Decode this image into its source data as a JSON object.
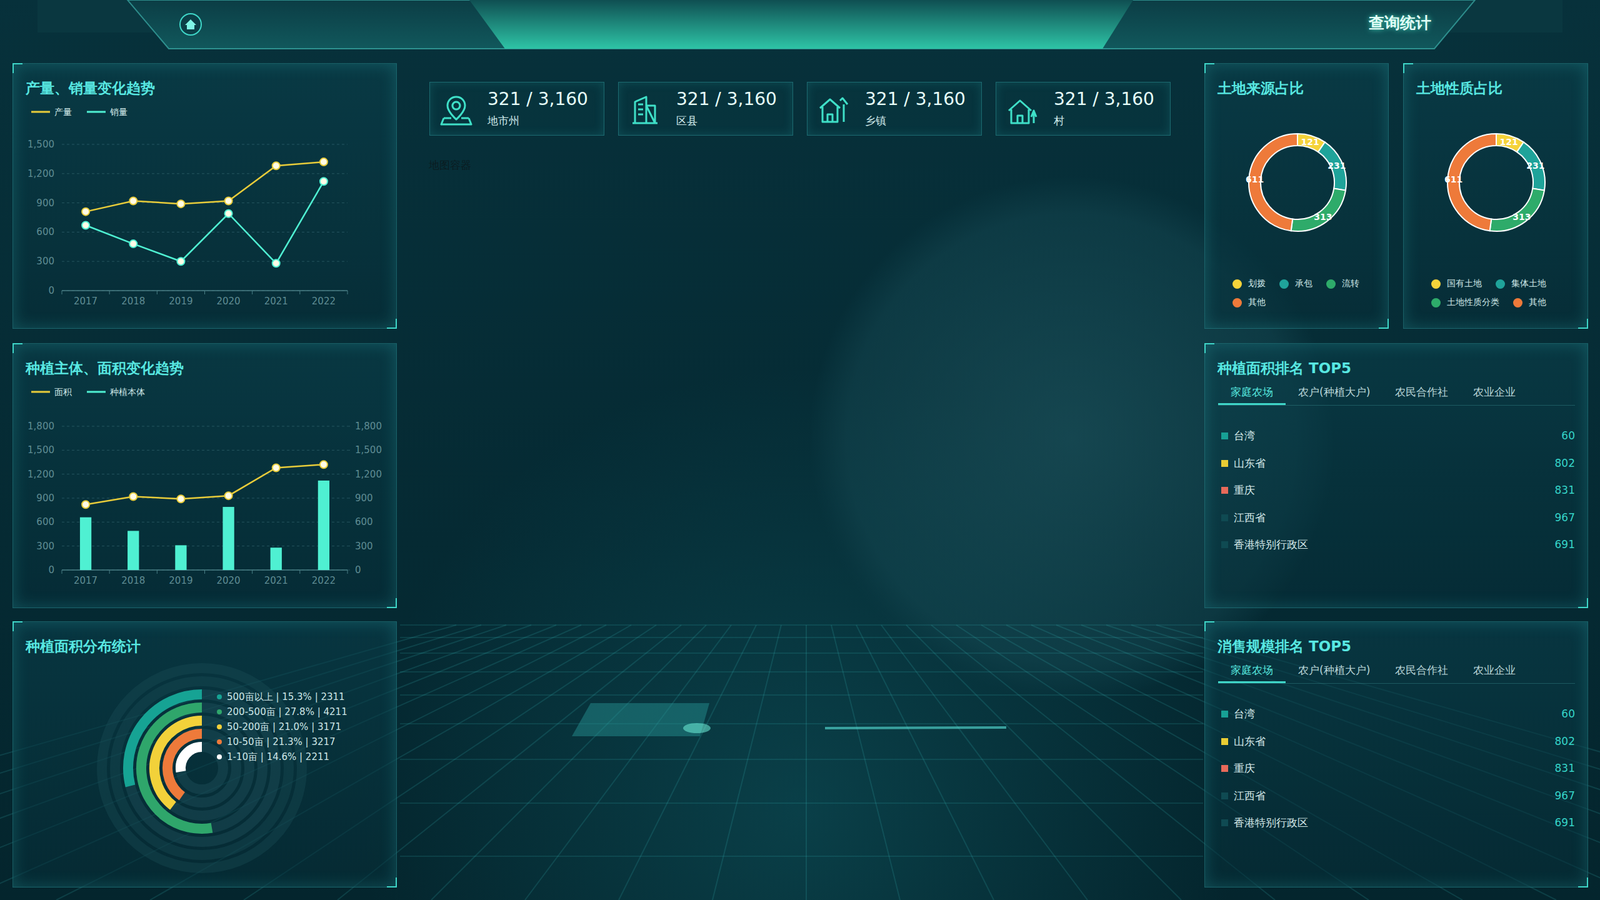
{
  "header": {
    "title": "查询统计"
  },
  "stats": [
    {
      "value": "321 / 3,160",
      "label": "地市州"
    },
    {
      "value": "321 / 3,160",
      "label": "区县"
    },
    {
      "value": "321 / 3,160",
      "label": "乡镇"
    },
    {
      "value": "321 / 3,160",
      "label": "村"
    }
  ],
  "map": {
    "placeholder": "地图容器"
  },
  "chart_data": [
    {
      "type": "line",
      "title": "产量、销量变化趋势",
      "categories": [
        "2017",
        "2018",
        "2019",
        "2020",
        "2021",
        "2022"
      ],
      "series": [
        {
          "name": "产量",
          "color": "#e8cc3a",
          "values": [
            810,
            920,
            890,
            920,
            1280,
            1320
          ]
        },
        {
          "name": "销量",
          "color": "#4ff0d2",
          "values": [
            670,
            480,
            300,
            790,
            280,
            1120
          ]
        }
      ],
      "ylim": [
        0,
        1500
      ],
      "yticks": [
        0,
        300,
        600,
        900,
        {
          "value": 1200,
          "label": "1,200"
        },
        {
          "value": 1500,
          "label": "1,500"
        }
      ],
      "grid": true,
      "legend": "top",
      "marker": "circle"
    },
    {
      "type": "bar",
      "title": "种植主体、面积变化趋势",
      "categories": [
        "2017",
        "2018",
        "2019",
        "2020",
        "2021",
        "2022"
      ],
      "series": [
        {
          "name": "面积",
          "type": "line",
          "color": "#e8cc3a",
          "marker": "circle",
          "values": [
            820,
            920,
            890,
            930,
            1280,
            1320
          ]
        },
        {
          "name": "种植本体",
          "type": "bar",
          "color": "#4ff0d2",
          "axis": "y2",
          "values": [
            660,
            490,
            310,
            790,
            280,
            1120
          ]
        }
      ],
      "ylim": [
        0,
        1800
      ],
      "yticks": [
        0,
        300,
        600,
        900,
        {
          "value": 1200,
          "label": "1,200"
        },
        {
          "value": 1500,
          "label": "1,500"
        },
        {
          "value": 1800,
          "label": "1,800"
        }
      ],
      "y2lim": [
        0,
        1800
      ],
      "y2ticks": [
        0,
        300,
        600,
        900,
        {
          "value": 1200,
          "label": "1,200"
        },
        {
          "value": 1500,
          "label": "1,500"
        },
        {
          "value": 1800,
          "label": "1,800"
        }
      ],
      "grid": true,
      "legend": "top"
    },
    {
      "type": "radial_bar",
      "title": "种植面积分布统计",
      "categories": [
        "500亩以上 | 15.3% | 2311",
        "200-500亩 | 27.8% | 4211",
        "50-200亩 | 21.0% | 3171",
        "10-50亩 | 21.3% | 3217",
        "1-10亩 | 14.6% | 2211"
      ],
      "values": [
        2311,
        4211,
        3171,
        3217,
        2211
      ],
      "colors": [
        "#16a394",
        "#2fa66b",
        "#f2d13a",
        "#ee7a3a",
        "#ffffff"
      ],
      "xlim": [
        0,
        8000
      ],
      "tick_labels": false,
      "legend": "right"
    },
    {
      "type": "pie",
      "title": "土地来源占比",
      "categories": [
        "划拨",
        "承包",
        "流转",
        "其他"
      ],
      "values": [
        121,
        231,
        313,
        611
      ],
      "colors": [
        "#f5d33a",
        "#1fa39a",
        "#2eab6a",
        "#ee7a3a"
      ],
      "data_labels": true,
      "legend": "bottom"
    },
    {
      "type": "pie",
      "title": "土地性质占比",
      "categories": [
        "国有土地",
        "集体土地",
        "土地性质分类",
        "其他"
      ],
      "values": [
        121,
        231,
        313,
        611
      ],
      "colors": [
        "#f5d33a",
        "#1fa39a",
        "#2eab6a",
        "#ee7a3a"
      ],
      "data_labels": true,
      "legend": "bottom"
    }
  ],
  "rankings": [
    {
      "title": "种植面积排名 TOP5",
      "tabs": [
        "家庭农场",
        "农户(种植大户)",
        "农民合作社",
        "农业企业"
      ],
      "active_tab": 0,
      "items": [
        {
          "name": "台湾",
          "value": 60,
          "color": "#17a095"
        },
        {
          "name": "山东省",
          "value": 802,
          "color": "#e9cd34"
        },
        {
          "name": "重庆",
          "value": 831,
          "color": "#e86a5a"
        },
        {
          "name": "江西省",
          "value": 967,
          "color": "#0f4a52"
        },
        {
          "name": "香港特别行政区",
          "value": 691,
          "color": "#0f4a52"
        }
      ]
    },
    {
      "title": "消售规模排名 TOP5",
      "tabs": [
        "家庭农场",
        "农户(种植大户)",
        "农民合作社",
        "农业企业"
      ],
      "active_tab": 0,
      "items": [
        {
          "name": "台湾",
          "value": 60,
          "color": "#17a095"
        },
        {
          "name": "山东省",
          "value": 802,
          "color": "#e9cd34"
        },
        {
          "name": "重庆",
          "value": 831,
          "color": "#e86a5a"
        },
        {
          "name": "江西省",
          "value": 967,
          "color": "#0f4a52"
        },
        {
          "name": "香港特别行政区",
          "value": 691,
          "color": "#0f4a52"
        }
      ]
    }
  ]
}
